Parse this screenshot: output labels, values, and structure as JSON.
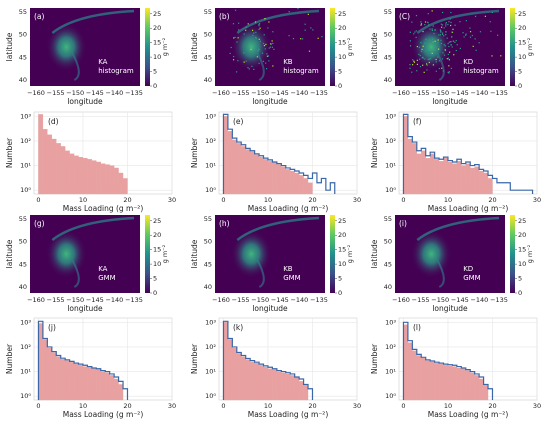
{
  "figure": {
    "colorbar_ticks": [
      0,
      5,
      10,
      15,
      20,
      25
    ],
    "colorbar_unit": "g m⁻²",
    "colormap": [
      "#440154",
      "#3b528b",
      "#21918c",
      "#5ec962",
      "#fde725"
    ],
    "map_background": "#440154",
    "hist_fill": "#e8a0a0",
    "hist_step": "#3a67a8",
    "map_axes": {
      "xlabel": "longitude",
      "ylabel": "latitude",
      "xticks": [
        "−160",
        "−155",
        "−150",
        "−145",
        "−140",
        "−135"
      ],
      "yticks": [
        "55",
        "50",
        "45",
        "40"
      ]
    },
    "hist_axes": {
      "xlabel": "Mass Loading (g m⁻²)",
      "ylabel": "Number",
      "xticks": [
        "0",
        "10",
        "20",
        "30"
      ],
      "yticks": [
        "10³",
        "10²",
        "10¹",
        "10⁰"
      ]
    }
  },
  "map_panels": [
    {
      "id": "a",
      "label": "(a)",
      "line1": "KA",
      "line2": "histogram"
    },
    {
      "id": "b",
      "label": "(b)",
      "line1": "KB",
      "line2": "histogram"
    },
    {
      "id": "c",
      "label": "(C)",
      "line1": "KD",
      "line2": "histogram"
    },
    {
      "id": "g",
      "label": "(g)",
      "line1": "KA",
      "line2": "GMM"
    },
    {
      "id": "h",
      "label": "(h)",
      "line1": "KB",
      "line2": "GMM"
    },
    {
      "id": "i",
      "label": "(i)",
      "line1": "KD",
      "line2": "GMM"
    }
  ],
  "hist_panels": [
    {
      "id": "d",
      "label": "(d)"
    },
    {
      "id": "e",
      "label": "(e)"
    },
    {
      "id": "f",
      "label": "(f)"
    },
    {
      "id": "j",
      "label": "(j)"
    },
    {
      "id": "k",
      "label": "(k)"
    },
    {
      "id": "l",
      "label": "(l)"
    }
  ],
  "chart_data": [
    {
      "type": "heatmap",
      "panel": "(a)",
      "xlim": [
        -160,
        -135
      ],
      "ylim": [
        38,
        55
      ],
      "xlabel": "longitude",
      "ylabel": "latitude",
      "colorbar_range": [
        0,
        27
      ],
      "colorbar_label": "g m⁻²",
      "annotation": [
        "KA",
        "histogram"
      ]
    },
    {
      "type": "heatmap",
      "panel": "(b)",
      "xlim": [
        -160,
        -135
      ],
      "ylim": [
        38,
        55
      ],
      "xlabel": "longitude",
      "ylabel": "latitude",
      "colorbar_range": [
        0,
        27
      ],
      "colorbar_label": "g m⁻²",
      "annotation": [
        "KB",
        "histogram"
      ]
    },
    {
      "type": "heatmap",
      "panel": "(C)",
      "xlim": [
        -160,
        -135
      ],
      "ylim": [
        38,
        55
      ],
      "xlabel": "longitude",
      "ylabel": "latitude",
      "colorbar_range": [
        0,
        27
      ],
      "colorbar_label": "g m⁻²",
      "annotation": [
        "KD",
        "histogram"
      ]
    },
    {
      "type": "bar",
      "panel": "(d)",
      "xlabel": "Mass Loading (g m⁻²)",
      "ylabel": "Number",
      "xlim": [
        -1,
        30
      ],
      "yscale": "log",
      "ylim": [
        0.7,
        1500
      ],
      "bin_width": 1,
      "series": [
        {
          "values": [
            1200,
            300,
            180,
            120,
            80,
            60,
            40,
            30,
            25,
            22,
            20,
            18,
            16,
            14,
            12,
            11,
            10,
            8,
            5,
            3
          ]
        }
      ]
    },
    {
      "type": "bar",
      "panel": "(e)",
      "xlabel": "Mass Loading (g m⁻²)",
      "ylabel": "Number",
      "xlim": [
        -1,
        30
      ],
      "yscale": "log",
      "ylim": [
        0.7,
        1500
      ],
      "bin_width": 1,
      "series": [
        {
          "values": [
            1000,
            250,
            110,
            80,
            60,
            45,
            36,
            28,
            22,
            18,
            15,
            13,
            11,
            9,
            7,
            6,
            5,
            4,
            3,
            2
          ]
        },
        {
          "values": [
            1200,
            300,
            130,
            90,
            70,
            50,
            40,
            30,
            25,
            20,
            17,
            14,
            12,
            10,
            8,
            7,
            6,
            5,
            4,
            3,
            5,
            2,
            3,
            1,
            2
          ]
        }
      ]
    },
    {
      "type": "bar",
      "panel": "(f)",
      "xlabel": "Mass Loading (g m⁻²)",
      "ylabel": "Number",
      "xlim": [
        -1,
        30
      ],
      "yscale": "log",
      "ylim": [
        0.7,
        1500
      ],
      "bin_width": 1,
      "series": [
        {
          "values": [
            1000,
            120,
            80,
            30,
            40,
            20,
            30,
            18,
            15,
            20,
            14,
            12,
            15,
            10,
            12,
            8,
            9,
            6,
            5,
            3
          ]
        },
        {
          "values": [
            1200,
            150,
            90,
            40,
            50,
            25,
            35,
            20,
            18,
            22,
            16,
            14,
            18,
            12,
            14,
            10,
            11,
            7,
            6,
            4,
            3,
            2,
            2,
            2,
            1,
            1,
            1,
            1,
            1
          ]
        }
      ]
    },
    {
      "type": "heatmap",
      "panel": "(g)",
      "xlim": [
        -160,
        -135
      ],
      "ylim": [
        38,
        55
      ],
      "xlabel": "longitude",
      "ylabel": "latitude",
      "colorbar_range": [
        0,
        27
      ],
      "colorbar_label": "g m⁻²",
      "annotation": [
        "KA",
        "GMM"
      ]
    },
    {
      "type": "heatmap",
      "panel": "(h)",
      "xlim": [
        -160,
        -135
      ],
      "ylim": [
        38,
        55
      ],
      "xlabel": "longitude",
      "ylabel": "latitude",
      "colorbar_range": [
        0,
        27
      ],
      "colorbar_label": "g m⁻²",
      "annotation": [
        "KB",
        "GMM"
      ]
    },
    {
      "type": "heatmap",
      "panel": "(i)",
      "xlim": [
        -160,
        -135
      ],
      "ylim": [
        38,
        55
      ],
      "xlabel": "longitude",
      "ylabel": "latitude",
      "colorbar_range": [
        0,
        27
      ],
      "colorbar_label": "g m⁻²",
      "annotation": [
        "KD",
        "GMM"
      ]
    },
    {
      "type": "bar",
      "panel": "(j)",
      "xlabel": "Mass Loading (g m⁻²)",
      "ylabel": "Number",
      "xlim": [
        -1,
        30
      ],
      "yscale": "log",
      "ylim": [
        0.7,
        1500
      ],
      "bin_width": 1,
      "series": [
        {
          "values": [
            900,
            200,
            90,
            60,
            40,
            32,
            28,
            24,
            20,
            18,
            16,
            15,
            13,
            12,
            10,
            9,
            7,
            5,
            3
          ]
        },
        {
          "values": [
            1100,
            220,
            100,
            65,
            45,
            35,
            30,
            26,
            22,
            20,
            18,
            16,
            14,
            13,
            11,
            10,
            8,
            6,
            4,
            2
          ]
        }
      ]
    },
    {
      "type": "bar",
      "panel": "(k)",
      "xlabel": "Mass Loading (g m⁻²)",
      "ylabel": "Number",
      "xlim": [
        -1,
        30
      ],
      "yscale": "log",
      "ylim": [
        0.7,
        1500
      ],
      "bin_width": 1,
      "series": [
        {
          "values": [
            1000,
            200,
            90,
            55,
            40,
            30,
            25,
            22,
            18,
            15,
            13,
            12,
            10,
            9,
            8,
            7,
            6,
            4,
            3
          ]
        },
        {
          "values": [
            1100,
            220,
            100,
            60,
            45,
            34,
            28,
            24,
            20,
            17,
            15,
            13,
            11,
            10,
            9,
            8,
            6,
            5,
            3,
            2
          ]
        }
      ]
    },
    {
      "type": "bar",
      "panel": "(l)",
      "xlabel": "Mass Loading (g m⁻²)",
      "ylabel": "Number",
      "xlim": [
        -1,
        30
      ],
      "yscale": "log",
      "ylim": [
        0.7,
        1500
      ],
      "bin_width": 1,
      "series": [
        {
          "values": [
            800,
            150,
            70,
            45,
            35,
            28,
            25,
            22,
            20,
            18,
            17,
            16,
            14,
            13,
            11,
            9,
            7,
            5,
            3
          ]
        },
        {
          "values": [
            1000,
            180,
            80,
            50,
            38,
            30,
            27,
            24,
            22,
            20,
            19,
            18,
            16,
            14,
            12,
            10,
            8,
            6,
            3,
            2
          ]
        }
      ]
    }
  ]
}
